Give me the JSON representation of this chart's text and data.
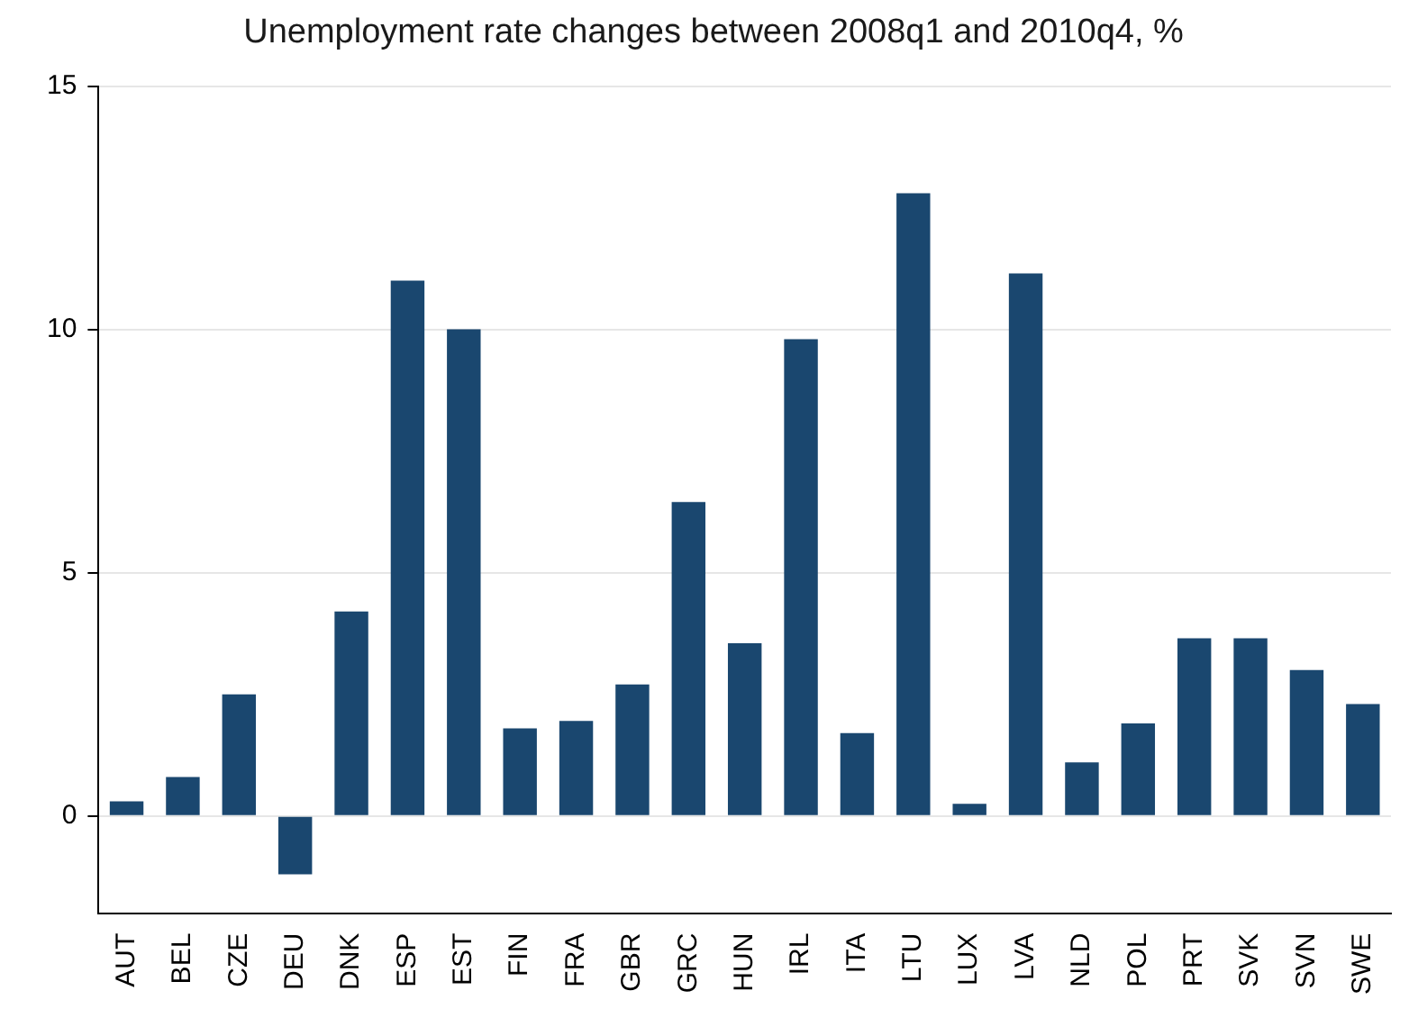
{
  "chart_data": {
    "type": "bar",
    "title": "Unemployment rate changes between 2008q1 and 2010q4, %",
    "categories": [
      "AUT",
      "BEL",
      "CZE",
      "DEU",
      "DNK",
      "ESP",
      "EST",
      "FIN",
      "FRA",
      "GBR",
      "GRC",
      "HUN",
      "IRL",
      "ITA",
      "LTU",
      "LUX",
      "LVA",
      "NLD",
      "POL",
      "PRT",
      "SVK",
      "SVN",
      "SWE"
    ],
    "values": [
      0.3,
      0.8,
      2.5,
      -1.2,
      4.2,
      11.0,
      10.0,
      1.8,
      1.95,
      2.7,
      6.45,
      3.55,
      9.8,
      1.7,
      12.8,
      0.25,
      11.15,
      1.1,
      1.9,
      3.65,
      3.65,
      3.0,
      2.3
    ],
    "color": "#1a476f",
    "ylim": [
      -2,
      15
    ],
    "yticks": [
      0,
      5,
      10,
      15
    ],
    "grid": "y"
  }
}
